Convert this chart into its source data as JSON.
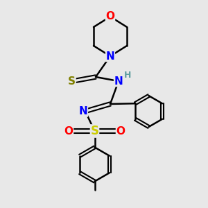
{
  "background_color": "#e8e8e8",
  "atom_colors": {
    "O": "#ff0000",
    "N": "#0000ff",
    "S_thio": "#808000",
    "S_sulfonyl": "#cccc00",
    "C": "#000000",
    "H": "#5f9ea0"
  },
  "bond_color": "#000000",
  "bond_width": 1.8,
  "font_size_atoms": 11,
  "font_size_H": 9
}
